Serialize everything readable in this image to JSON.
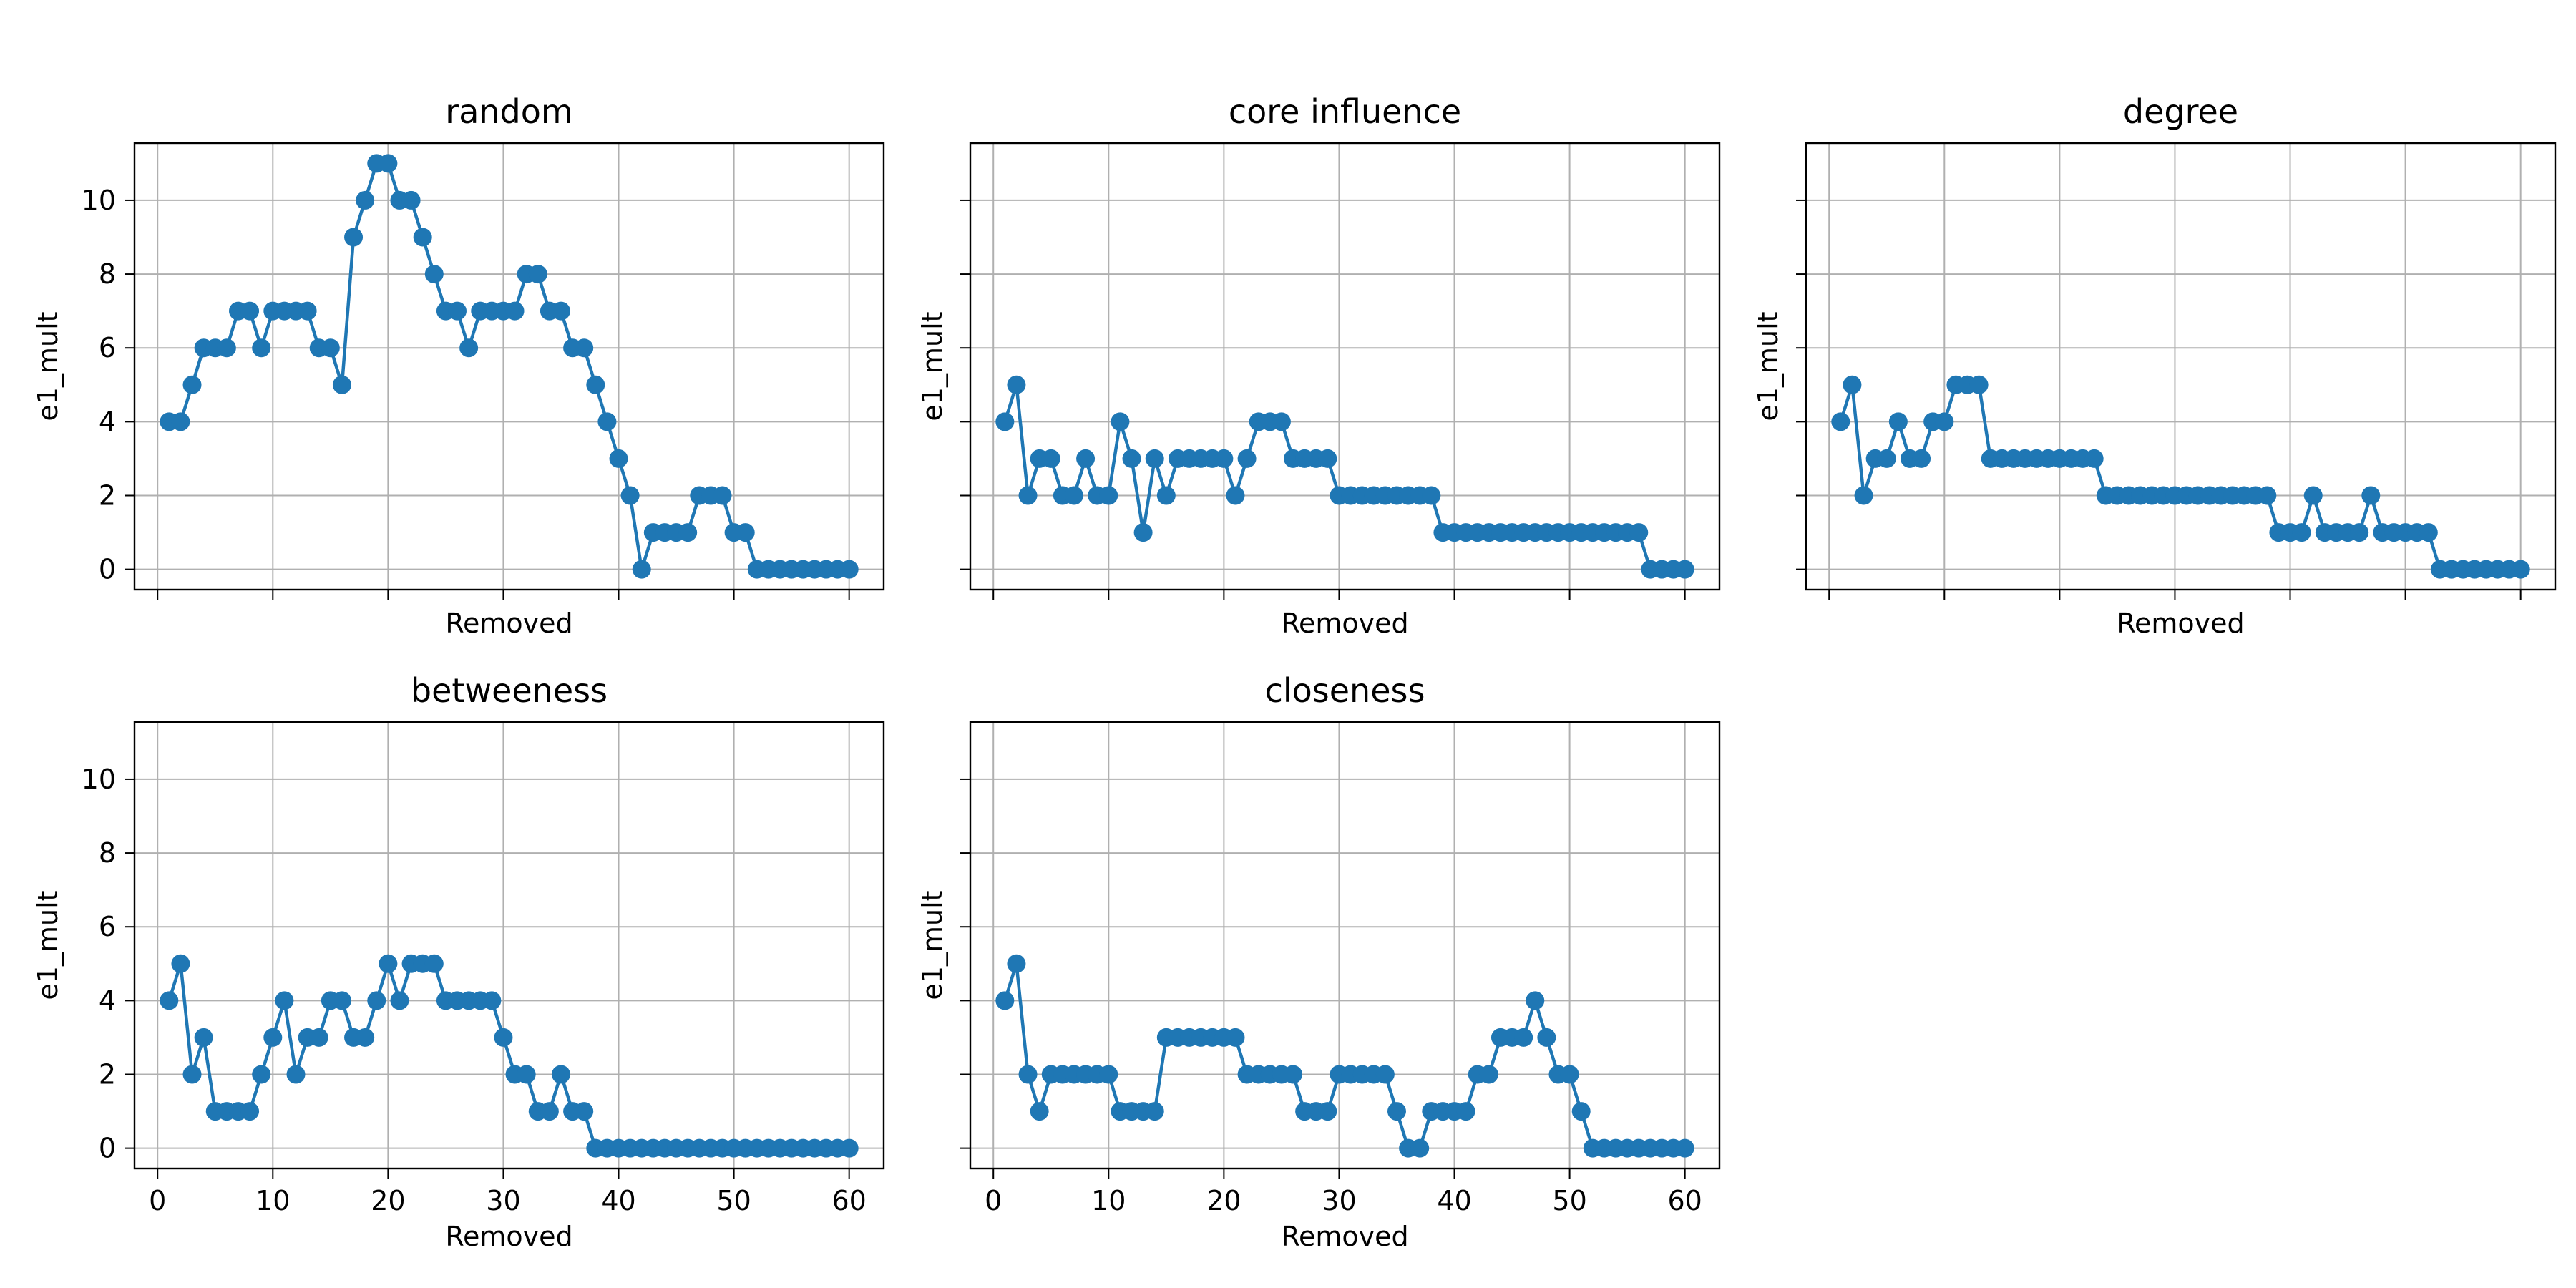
{
  "colors": {
    "series": "#1f77b4",
    "grid": "#b0b0b0"
  },
  "chart_data": [
    {
      "type": "line",
      "title": "random",
      "xlabel": "Removed",
      "ylabel": "e1_mult",
      "xlim": [
        -2,
        63
      ],
      "ylim": [
        -0.55,
        11.55
      ],
      "xticks": [
        0,
        10,
        20,
        30,
        40,
        50,
        60
      ],
      "yticks": [
        0,
        2,
        4,
        6,
        8,
        10
      ],
      "show_xticklabels": false,
      "show_yticklabels": true,
      "grid": true,
      "marker": "circle",
      "x": [
        1,
        2,
        3,
        4,
        5,
        6,
        7,
        8,
        9,
        10,
        11,
        12,
        13,
        14,
        15,
        16,
        17,
        18,
        19,
        20,
        21,
        22,
        23,
        24,
        25,
        26,
        27,
        28,
        29,
        30,
        31,
        32,
        33,
        34,
        35,
        36,
        37,
        38,
        39,
        40,
        41,
        42,
        43,
        44,
        45,
        46,
        47,
        48,
        49,
        50,
        51,
        52,
        53,
        54,
        55,
        56,
        57,
        58,
        59,
        60
      ],
      "values": [
        4,
        4,
        5,
        6,
        6,
        6,
        7,
        7,
        6,
        7,
        7,
        7,
        7,
        6,
        6,
        5,
        9,
        10,
        11,
        11,
        10,
        10,
        9,
        8,
        7,
        7,
        6,
        7,
        7,
        7,
        7,
        8,
        8,
        7,
        7,
        6,
        6,
        5,
        4,
        3,
        2,
        0,
        1,
        1,
        1,
        1,
        2,
        2,
        2,
        1,
        1,
        0,
        0,
        0,
        0,
        0,
        0,
        0,
        0,
        0
      ]
    },
    {
      "type": "line",
      "title": "core influence",
      "xlabel": "Removed",
      "ylabel": "e1_mult",
      "xlim": [
        -2,
        63
      ],
      "ylim": [
        -0.55,
        11.55
      ],
      "xticks": [
        0,
        10,
        20,
        30,
        40,
        50,
        60
      ],
      "yticks": [
        0,
        2,
        4,
        6,
        8,
        10
      ],
      "show_xticklabels": false,
      "show_yticklabels": false,
      "grid": true,
      "marker": "circle",
      "x": [
        1,
        2,
        3,
        4,
        5,
        6,
        7,
        8,
        9,
        10,
        11,
        12,
        13,
        14,
        15,
        16,
        17,
        18,
        19,
        20,
        21,
        22,
        23,
        24,
        25,
        26,
        27,
        28,
        29,
        30,
        31,
        32,
        33,
        34,
        35,
        36,
        37,
        38,
        39,
        40,
        41,
        42,
        43,
        44,
        45,
        46,
        47,
        48,
        49,
        50,
        51,
        52,
        53,
        54,
        55,
        56,
        57,
        58,
        59,
        60
      ],
      "values": [
        4,
        5,
        2,
        3,
        3,
        2,
        2,
        3,
        2,
        2,
        4,
        3,
        1,
        3,
        2,
        3,
        3,
        3,
        3,
        3,
        2,
        3,
        4,
        4,
        4,
        3,
        3,
        3,
        3,
        2,
        2,
        2,
        2,
        2,
        2,
        2,
        2,
        2,
        1,
        1,
        1,
        1,
        1,
        1,
        1,
        1,
        1,
        1,
        1,
        1,
        1,
        1,
        1,
        1,
        1,
        1,
        0,
        0,
        0,
        0
      ]
    },
    {
      "type": "line",
      "title": "degree",
      "xlabel": "Removed",
      "ylabel": "e1_mult",
      "xlim": [
        -2,
        63
      ],
      "ylim": [
        -0.55,
        11.55
      ],
      "xticks": [
        0,
        10,
        20,
        30,
        40,
        50,
        60
      ],
      "yticks": [
        0,
        2,
        4,
        6,
        8,
        10
      ],
      "show_xticklabels": false,
      "show_yticklabels": false,
      "grid": true,
      "marker": "circle",
      "x": [
        1,
        2,
        3,
        4,
        5,
        6,
        7,
        8,
        9,
        10,
        11,
        12,
        13,
        14,
        15,
        16,
        17,
        18,
        19,
        20,
        21,
        22,
        23,
        24,
        25,
        26,
        27,
        28,
        29,
        30,
        31,
        32,
        33,
        34,
        35,
        36,
        37,
        38,
        39,
        40,
        41,
        42,
        43,
        44,
        45,
        46,
        47,
        48,
        49,
        50,
        51,
        52,
        53,
        54,
        55,
        56,
        57,
        58,
        59,
        60
      ],
      "values": [
        4,
        5,
        2,
        3,
        3,
        4,
        3,
        3,
        4,
        4,
        5,
        5,
        5,
        3,
        3,
        3,
        3,
        3,
        3,
        3,
        3,
        3,
        3,
        2,
        2,
        2,
        2,
        2,
        2,
        2,
        2,
        2,
        2,
        2,
        2,
        2,
        2,
        2,
        1,
        1,
        1,
        2,
        1,
        1,
        1,
        1,
        2,
        1,
        1,
        1,
        1,
        1,
        0,
        0,
        0,
        0,
        0,
        0,
        0,
        0
      ]
    },
    {
      "type": "line",
      "title": "betweeness",
      "xlabel": "Removed",
      "ylabel": "e1_mult",
      "xlim": [
        -2,
        63
      ],
      "ylim": [
        -0.55,
        11.55
      ],
      "xticks": [
        0,
        10,
        20,
        30,
        40,
        50,
        60
      ],
      "yticks": [
        0,
        2,
        4,
        6,
        8,
        10
      ],
      "show_xticklabels": true,
      "show_yticklabels": true,
      "grid": true,
      "marker": "circle",
      "x": [
        1,
        2,
        3,
        4,
        5,
        6,
        7,
        8,
        9,
        10,
        11,
        12,
        13,
        14,
        15,
        16,
        17,
        18,
        19,
        20,
        21,
        22,
        23,
        24,
        25,
        26,
        27,
        28,
        29,
        30,
        31,
        32,
        33,
        34,
        35,
        36,
        37,
        38,
        39,
        40,
        41,
        42,
        43,
        44,
        45,
        46,
        47,
        48,
        49,
        50,
        51,
        52,
        53,
        54,
        55,
        56,
        57,
        58,
        59,
        60
      ],
      "values": [
        4,
        5,
        2,
        3,
        1,
        1,
        1,
        1,
        2,
        3,
        4,
        2,
        3,
        3,
        4,
        4,
        3,
        3,
        4,
        5,
        4,
        5,
        5,
        5,
        4,
        4,
        4,
        4,
        4,
        3,
        2,
        2,
        1,
        1,
        2,
        1,
        1,
        0,
        0,
        0,
        0,
        0,
        0,
        0,
        0,
        0,
        0,
        0,
        0,
        0,
        0,
        0,
        0,
        0,
        0,
        0,
        0,
        0,
        0,
        0
      ]
    },
    {
      "type": "line",
      "title": "closeness",
      "xlabel": "Removed",
      "ylabel": "e1_mult",
      "xlim": [
        -2,
        63
      ],
      "ylim": [
        -0.55,
        11.55
      ],
      "xticks": [
        0,
        10,
        20,
        30,
        40,
        50,
        60
      ],
      "yticks": [
        0,
        2,
        4,
        6,
        8,
        10
      ],
      "show_xticklabels": true,
      "show_yticklabels": false,
      "grid": true,
      "marker": "circle",
      "x": [
        1,
        2,
        3,
        4,
        5,
        6,
        7,
        8,
        9,
        10,
        11,
        12,
        13,
        14,
        15,
        16,
        17,
        18,
        19,
        20,
        21,
        22,
        23,
        24,
        25,
        26,
        27,
        28,
        29,
        30,
        31,
        32,
        33,
        34,
        35,
        36,
        37,
        38,
        39,
        40,
        41,
        42,
        43,
        44,
        45,
        46,
        47,
        48,
        49,
        50,
        51,
        52,
        53,
        54,
        55,
        56,
        57,
        58,
        59,
        60
      ],
      "values": [
        4,
        5,
        2,
        1,
        2,
        2,
        2,
        2,
        2,
        2,
        1,
        1,
        1,
        1,
        3,
        3,
        3,
        3,
        3,
        3,
        3,
        2,
        2,
        2,
        2,
        2,
        1,
        1,
        1,
        2,
        2,
        2,
        2,
        2,
        1,
        0,
        0,
        1,
        1,
        1,
        1,
        2,
        2,
        3,
        3,
        3,
        4,
        3,
        2,
        2,
        1,
        0,
        0,
        0,
        0,
        0,
        0,
        0,
        0,
        0
      ]
    }
  ]
}
